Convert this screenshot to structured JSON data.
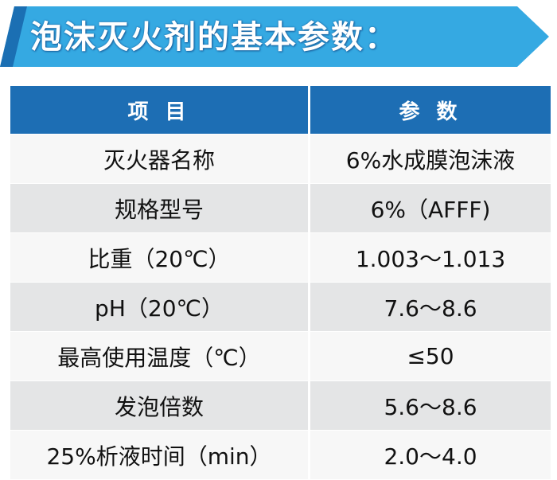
{
  "header": {
    "title": "泡沫灭火剂的基本参数："
  },
  "table": {
    "columns": [
      "项 目",
      "参 数"
    ],
    "rows": [
      [
        "灭火器名称",
        "6%水成膜泡沫液"
      ],
      [
        "规格型号",
        "6%（AFFF)"
      ],
      [
        "比重（20℃）",
        "1.003～1.013"
      ],
      [
        "pH（20℃）",
        "7.6～8.6"
      ],
      [
        "最高使用温度（℃）",
        "≤50"
      ],
      [
        "发泡倍数",
        "5.6～8.6"
      ],
      [
        "25%析液时间（min）",
        "2.0～4.0"
      ]
    ]
  }
}
